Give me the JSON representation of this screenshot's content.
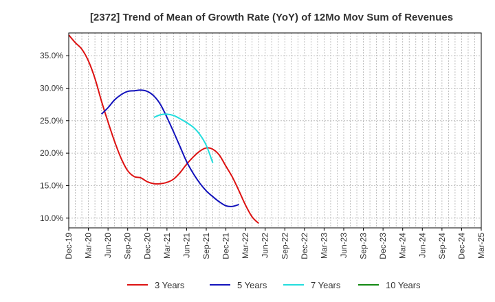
{
  "chart_data": {
    "type": "line",
    "title": "[2372]  Trend of Mean of Growth Rate (YoY) of 12Mo Mov Sum of Revenues",
    "xlabel": "",
    "ylabel": "",
    "x_tick_labels": [
      "Dec-19",
      "Mar-20",
      "Jun-20",
      "Sep-20",
      "Dec-20",
      "Mar-21",
      "Jun-21",
      "Sep-21",
      "Dec-21",
      "Mar-22",
      "Jun-22",
      "Sep-22",
      "Dec-22",
      "Mar-23",
      "Jun-23",
      "Sep-23",
      "Dec-23",
      "Mar-24",
      "Jun-24",
      "Sep-24",
      "Dec-24",
      "Mar-25"
    ],
    "y_ticks": [
      10.0,
      15.0,
      20.0,
      25.0,
      30.0,
      35.0
    ],
    "y_tick_labels": [
      "10.0%",
      "15.0%",
      "20.0%",
      "25.0%",
      "30.0%",
      "35.0%"
    ],
    "ylim": [
      8.5,
      38.5
    ],
    "grid": true,
    "legend_position": "bottom",
    "series": [
      {
        "name": "3 Years",
        "color": "#dd1111",
        "start_index": 0,
        "values": [
          38.2,
          37.0,
          36.0,
          34.2,
          31.5,
          28.0,
          24.8,
          21.8,
          19.2,
          17.3,
          16.4,
          16.2,
          15.6,
          15.3,
          15.3,
          15.5,
          16.0,
          17.0,
          18.3,
          19.4,
          20.3,
          20.8,
          20.6,
          19.7,
          18.0,
          16.3,
          14.2,
          12.0,
          10.2,
          9.2
        ]
      },
      {
        "name": "5 Years",
        "color": "#1111bb",
        "start_index": 5,
        "values": [
          26.0,
          27.0,
          28.2,
          29.0,
          29.5,
          29.6,
          29.7,
          29.5,
          28.8,
          27.5,
          25.5,
          23.3,
          21.0,
          18.7,
          16.9,
          15.4,
          14.2,
          13.3,
          12.5,
          11.9,
          11.8,
          12.1
        ]
      },
      {
        "name": "7 Years",
        "color": "#22dddd",
        "start_index": 13,
        "values": [
          25.5,
          25.9,
          26.0,
          25.8,
          25.3,
          24.7,
          24.0,
          22.9,
          21.2,
          18.5
        ]
      },
      {
        "name": "10 Years",
        "color": "#118811",
        "start_index": 0,
        "values": []
      }
    ]
  }
}
